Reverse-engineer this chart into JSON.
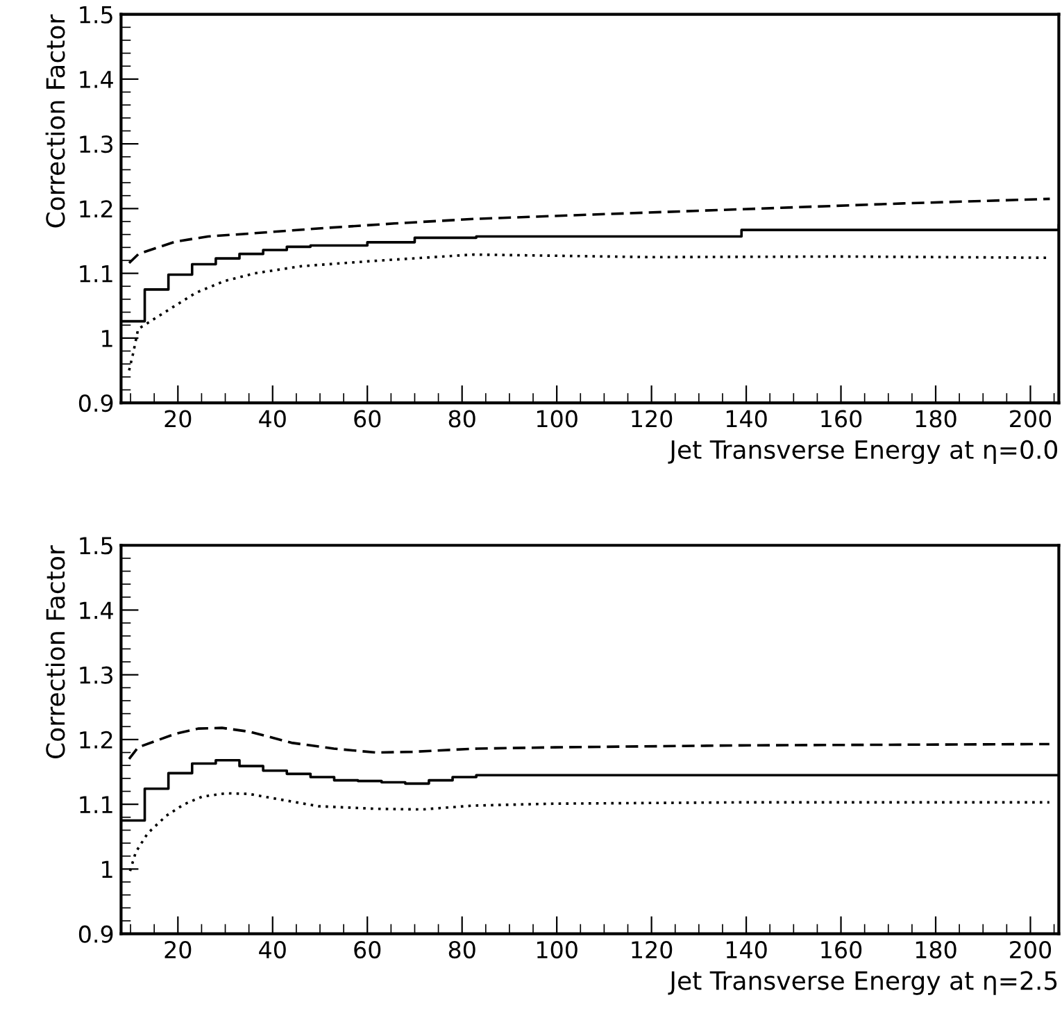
{
  "chart_data": [
    {
      "type": "line",
      "xlabel": "Jet Transverse Energy at η=0.0",
      "ylabel": "Correction Factor",
      "xlim": [
        8,
        206
      ],
      "ylim": [
        0.9,
        1.5
      ],
      "xticks": [
        20,
        40,
        60,
        80,
        100,
        120,
        140,
        160,
        180,
        200
      ],
      "yticks": [
        0.9,
        1,
        1.1,
        1.2,
        1.3,
        1.4,
        1.5
      ],
      "grid": false,
      "legend": false,
      "series": [
        {
          "type": "step",
          "color": "#000000",
          "line_style": "solid",
          "x": [
            8,
            13,
            18,
            23,
            28,
            33,
            38,
            43,
            48,
            60,
            70,
            83,
            139,
            206
          ],
          "values": [
            1.026,
            1.075,
            1.098,
            1.114,
            1.123,
            1.13,
            1.136,
            1.141,
            1.143,
            1.148,
            1.155,
            1.157,
            1.167,
            1.174
          ]
        },
        {
          "color": "#000000",
          "line_style": "dashed",
          "x": [
            9.7,
            11.7,
            19.5,
            26.4,
            36.2,
            51,
            65.7,
            82.4,
            104.5,
            139,
            173.2,
            204.1
          ],
          "values": [
            1.116,
            1.13,
            1.149,
            1.157,
            1.162,
            1.17,
            1.177,
            1.184,
            1.19,
            1.199,
            1.208,
            1.215
          ]
        },
        {
          "color": "#000000",
          "line_style": "dotted",
          "x": [
            9.7,
            10.6,
            11.6,
            19.2,
            23.8,
            29.8,
            36.2,
            46,
            61,
            82.4,
            120,
            160,
            204
          ],
          "values": [
            0.95,
            0.978,
            1.014,
            1.049,
            1.07,
            1.088,
            1.1,
            1.111,
            1.119,
            1.129,
            1.125,
            1.126,
            1.124
          ]
        }
      ]
    },
    {
      "type": "line",
      "xlabel": "Jet Transverse Energy at η=2.5",
      "ylabel": "Correction Factor",
      "xlim": [
        8,
        206
      ],
      "ylim": [
        0.9,
        1.5
      ],
      "xticks": [
        20,
        40,
        60,
        80,
        100,
        120,
        140,
        160,
        180,
        200
      ],
      "yticks": [
        0.9,
        1,
        1.1,
        1.2,
        1.3,
        1.4,
        1.5
      ],
      "grid": false,
      "legend": false,
      "series": [
        {
          "type": "step",
          "color": "#000000",
          "line_style": "solid",
          "x": [
            8,
            13,
            18,
            23,
            28,
            33,
            38,
            43,
            48,
            53,
            58,
            63,
            68,
            73,
            78,
            83,
            206
          ],
          "values": [
            1.075,
            1.124,
            1.148,
            1.163,
            1.168,
            1.159,
            1.152,
            1.147,
            1.142,
            1.137,
            1.136,
            1.134,
            1.132,
            1.137,
            1.142,
            1.145,
            1.145
          ]
        },
        {
          "color": "#000000",
          "line_style": "dashed",
          "x": [
            9.7,
            11.6,
            19.5,
            24.4,
            29.3,
            35.2,
            44,
            52.9,
            61.7,
            69.5,
            77.4,
            83.3,
            99.6,
            139,
            204
          ],
          "values": [
            1.17,
            1.188,
            1.209,
            1.217,
            1.218,
            1.212,
            1.195,
            1.186,
            1.18,
            1.181,
            1.184,
            1.186,
            1.188,
            1.191,
            1.193
          ]
        },
        {
          "color": "#000000",
          "line_style": "dotted",
          "x": [
            9.9,
            11.1,
            13.6,
            17.5,
            21.3,
            25.2,
            30.1,
            35,
            41.9,
            49.7,
            61.7,
            71.5,
            82.4,
            99.6,
            139,
            204
          ],
          "values": [
            0.997,
            1.026,
            1.055,
            1.082,
            1.1,
            1.112,
            1.117,
            1.116,
            1.107,
            1.097,
            1.093,
            1.092,
            1.098,
            1.101,
            1.103,
            1.103
          ]
        }
      ]
    }
  ]
}
